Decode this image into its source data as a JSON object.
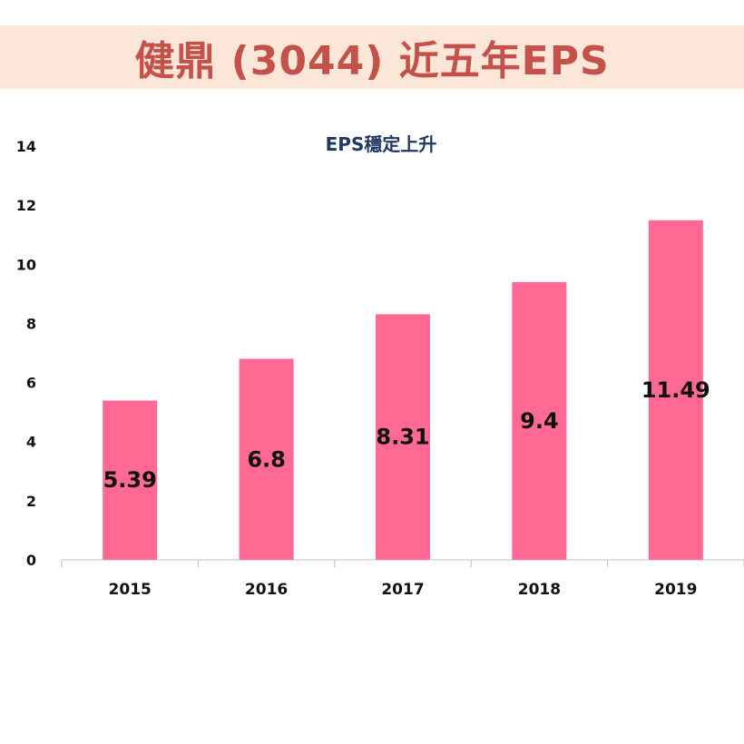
{
  "header": {
    "title": "健鼎 (3044) 近五年EPS",
    "background": "#fbe6d8",
    "text_color": "#c4514a"
  },
  "chart_data": {
    "type": "bar",
    "title": "EPS穩定上升",
    "categories": [
      "2015",
      "2016",
      "2017",
      "2018",
      "2019"
    ],
    "values": [
      5.39,
      6.8,
      8.31,
      9.4,
      11.49
    ],
    "data_labels": [
      "5.39",
      "6.8",
      "8.31",
      "9.4",
      "11.49"
    ],
    "ylim": [
      0,
      14
    ],
    "yticks": [
      0,
      2,
      4,
      6,
      8,
      10,
      12,
      14
    ],
    "xlabel": "",
    "ylabel": "",
    "grid": false,
    "legend": "none",
    "bar_color": "#ff6994",
    "title_color": "#1f3864"
  }
}
